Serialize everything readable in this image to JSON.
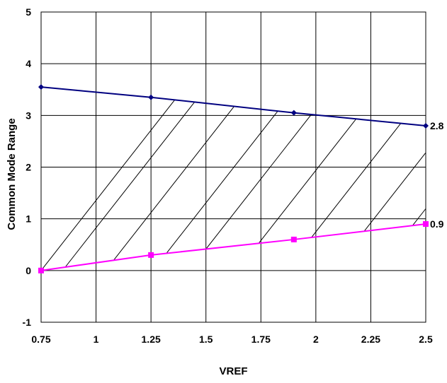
{
  "chart_data": {
    "type": "line",
    "title": "",
    "xlabel": "VREF",
    "ylabel": "Common Mode Range",
    "xlim": [
      0.75,
      2.5
    ],
    "ylim": [
      -1,
      5
    ],
    "x_ticks": [
      "0.75",
      "1",
      "1.25",
      "1.5",
      "1.75",
      "2",
      "2.25",
      "2.5"
    ],
    "y_ticks": [
      "-1",
      "0",
      "1",
      "2",
      "3",
      "4",
      "5"
    ],
    "grid": true,
    "legend": "none",
    "hatched_region": "between series",
    "series": [
      {
        "color": "#000080",
        "marker": "diamond",
        "x": [
          0.75,
          1.25,
          1.9,
          2.5
        ],
        "y": [
          3.55,
          3.35,
          3.05,
          2.8
        ],
        "end_label": "2.8"
      },
      {
        "color": "#ff00ff",
        "marker": "square",
        "x": [
          0.75,
          1.25,
          1.9,
          2.5
        ],
        "y": [
          0,
          0.3,
          0.6,
          0.9
        ],
        "end_label": "0.9"
      }
    ]
  }
}
